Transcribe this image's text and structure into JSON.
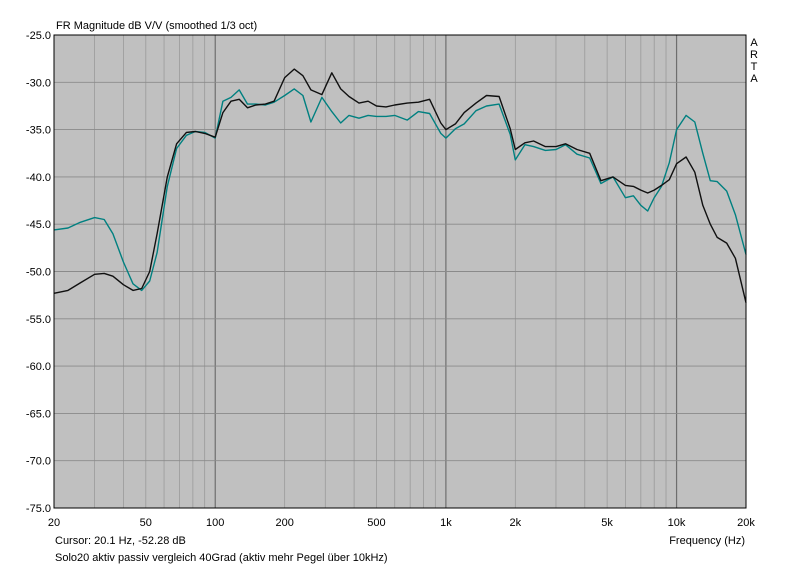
{
  "chart_data": {
    "type": "line",
    "title": "FR Magnitude dB V/V (smoothed 1/3 oct)",
    "brand": "ARTA",
    "xlabel": "Frequency (Hz)",
    "ylabel": "",
    "x_scale": "log",
    "xlim": [
      20,
      20000
    ],
    "ylim": [
      -75,
      -25
    ],
    "grid": true,
    "plot_background": "#c0c0c0",
    "x_ticks": [
      {
        "value": 20,
        "label": "20"
      },
      {
        "value": 50,
        "label": "50"
      },
      {
        "value": 100,
        "label": "100"
      },
      {
        "value": 200,
        "label": "200"
      },
      {
        "value": 500,
        "label": "500"
      },
      {
        "value": 1000,
        "label": "1k"
      },
      {
        "value": 2000,
        "label": "2k"
      },
      {
        "value": 5000,
        "label": "5k"
      },
      {
        "value": 10000,
        "label": "10k"
      },
      {
        "value": 20000,
        "label": "20k"
      }
    ],
    "y_ticks": [
      {
        "value": -25,
        "label": "-25.0"
      },
      {
        "value": -30,
        "label": "-30.0"
      },
      {
        "value": -35,
        "label": "-35.0"
      },
      {
        "value": -40,
        "label": "-40.0"
      },
      {
        "value": -45,
        "label": "-45.0"
      },
      {
        "value": -50,
        "label": "-50.0"
      },
      {
        "value": -55,
        "label": "-55.0"
      },
      {
        "value": -60,
        "label": "-60.0"
      },
      {
        "value": -65,
        "label": "-65.0"
      },
      {
        "value": -70,
        "label": "-70.0"
      },
      {
        "value": -75,
        "label": "-75.0"
      }
    ],
    "cursor_text": "Cursor: 20.1 Hz, -52.28 dB",
    "caption": "Solo20 aktiv passiv vergleich 40Grad (aktiv mehr Pegel über 10kHz)",
    "series": [
      {
        "color": "#008080",
        "x": [
          20,
          23,
          26,
          30,
          33,
          36,
          40,
          44,
          48,
          52,
          56,
          62,
          68,
          75,
          82,
          90,
          100,
          108,
          117,
          127,
          138,
          150,
          165,
          180,
          200,
          220,
          240,
          260,
          290,
          320,
          350,
          380,
          420,
          460,
          500,
          550,
          600,
          680,
          760,
          850,
          950,
          1000,
          1100,
          1200,
          1350,
          1500,
          1700,
          1900,
          2000,
          2200,
          2400,
          2700,
          3000,
          3300,
          3700,
          4200,
          4700,
          5300,
          6000,
          6500,
          7000,
          7500,
          8000,
          8600,
          9300,
          10000,
          11000,
          12000,
          13000,
          14000,
          15000,
          16500,
          18000,
          20000
        ],
        "y": [
          -45.6,
          -45.4,
          -44.8,
          -44.3,
          -44.5,
          -46,
          -49,
          -51.3,
          -52,
          -51,
          -48,
          -41,
          -37,
          -35.6,
          -35.2,
          -35.3,
          -35.9,
          -32,
          -31.6,
          -30.8,
          -32.3,
          -32.3,
          -32.4,
          -32.1,
          -31.4,
          -30.7,
          -31.4,
          -34.2,
          -31.6,
          -33.1,
          -34.3,
          -33.5,
          -33.8,
          -33.5,
          -33.6,
          -33.6,
          -33.5,
          -34,
          -33.1,
          -33.3,
          -35.4,
          -35.9,
          -34.9,
          -34.4,
          -33,
          -32.5,
          -32.3,
          -35.5,
          -38.2,
          -36.6,
          -36.8,
          -37.2,
          -37.1,
          -36.6,
          -37.6,
          -38,
          -40.7,
          -40,
          -42.2,
          -42,
          -43,
          -43.6,
          -42.2,
          -41,
          -38.5,
          -35,
          -33.5,
          -34.2,
          -37.5,
          -40.4,
          -40.5,
          -41.5,
          -44,
          -48.2
        ]
      },
      {
        "color": "#101010",
        "x": [
          20,
          23,
          26,
          30,
          33,
          36,
          40,
          44,
          48,
          52,
          56,
          62,
          68,
          75,
          82,
          90,
          100,
          108,
          117,
          127,
          138,
          150,
          165,
          180,
          200,
          220,
          240,
          260,
          290,
          320,
          350,
          380,
          420,
          460,
          500,
          550,
          600,
          680,
          760,
          850,
          950,
          1000,
          1100,
          1200,
          1350,
          1500,
          1700,
          1900,
          2000,
          2200,
          2400,
          2700,
          3000,
          3300,
          3700,
          4200,
          4700,
          5300,
          6000,
          6500,
          7000,
          7500,
          8000,
          8600,
          9300,
          10000,
          11000,
          12000,
          13000,
          14000,
          15000,
          16500,
          18000,
          20000
        ],
        "y": [
          -52.3,
          -52,
          -51.2,
          -50.3,
          -50.2,
          -50.5,
          -51.4,
          -52,
          -51.8,
          -50,
          -46,
          -40,
          -36.5,
          -35.3,
          -35.2,
          -35.4,
          -35.8,
          -33.2,
          -32,
          -31.8,
          -32.7,
          -32.4,
          -32.3,
          -32,
          -29.5,
          -28.6,
          -29.3,
          -30.8,
          -31.3,
          -29,
          -30.7,
          -31.5,
          -32.2,
          -32,
          -32.5,
          -32.6,
          -32.4,
          -32.2,
          -32.1,
          -31.8,
          -34.3,
          -35,
          -34.4,
          -33.2,
          -32.2,
          -31.4,
          -31.5,
          -34.9,
          -37.1,
          -36.4,
          -36.2,
          -36.8,
          -36.8,
          -36.5,
          -37.1,
          -37.5,
          -40.4,
          -40,
          -40.9,
          -41,
          -41.4,
          -41.7,
          -41.4,
          -40.9,
          -40.3,
          -38.6,
          -37.9,
          -39.5,
          -43,
          -45,
          -46.4,
          -47,
          -48.6,
          -53.3
        ]
      }
    ]
  }
}
